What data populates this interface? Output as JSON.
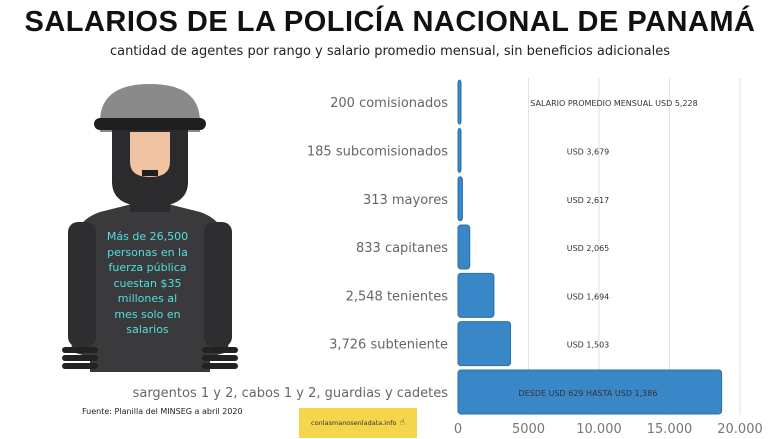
{
  "header": {
    "title": "SALARIOS DE LA POLICÍA NACIONAL DE PANAMÁ",
    "subtitle": "cantidad de agentes por rango y salario promedio mensual, sin beneficios adicionales"
  },
  "callout": "Más de 26,500 personas en la fuerza pública cuestan $35 millones al mes solo en salarios",
  "footer": {
    "source": "Fuente: Planilla del MINSEG a abril 2020",
    "site": "conlasmanosenladata.info",
    "site_icon": "pointer-hand-icon"
  },
  "chart_data": {
    "type": "bar",
    "orientation": "horizontal",
    "categories": [
      "200 comisionados",
      "185 subcomisionados",
      "313 mayores",
      "833 capitanes",
      "2,548 tenientes",
      "3,726 subteniente",
      "sargentos 1 y 2, cabos 1 y 2, guardias y cadetes"
    ],
    "values": [
      200,
      185,
      313,
      833,
      2548,
      3726,
      18695
    ],
    "annotations": [
      "SALARIO PROMEDIO MENSUAL USD 5,228",
      "USD 3,679",
      "USD 2,617",
      "USD 2,065",
      "USD 1,694",
      "USD 1,503",
      "DESDE USD 629 HASTA USD 1,386"
    ],
    "xlim": [
      0,
      20000
    ],
    "xticks": [
      0,
      5000,
      10000,
      15000,
      20000
    ],
    "xtick_labels": [
      "0",
      "5000",
      "10.000",
      "15.000",
      "20.000"
    ],
    "grid": true,
    "bar_color": "#3a87c8"
  }
}
